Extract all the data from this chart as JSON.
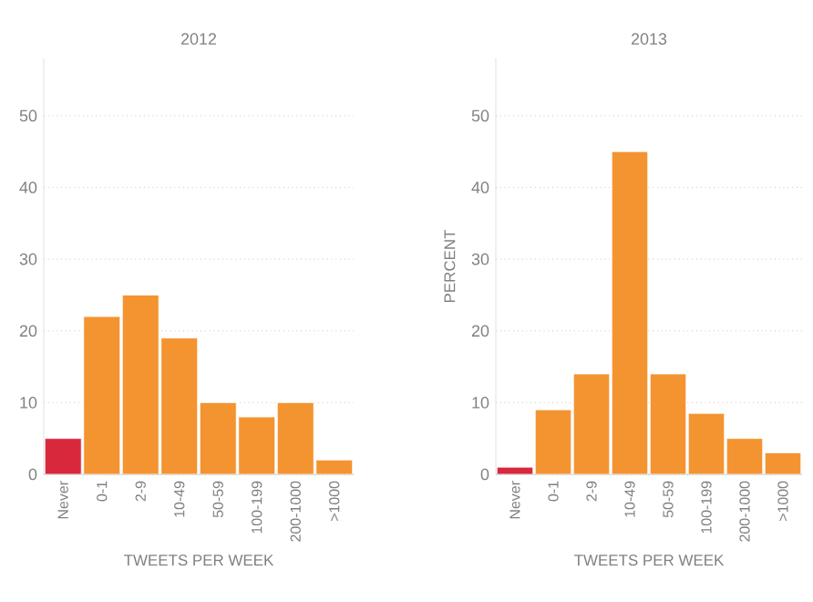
{
  "chart_data": [
    {
      "type": "bar",
      "title": "2012",
      "xlabel": "TWEETS PER WEEK",
      "categories": [
        "Never",
        "0-1",
        "2-9",
        "10-49",
        "50-59",
        "100-199",
        "200-1000",
        ">1000"
      ],
      "values": [
        5,
        22,
        25,
        19,
        10,
        8,
        10,
        2
      ],
      "colors": [
        "#d8283c",
        "#f39431",
        "#f39431",
        "#f39431",
        "#f39431",
        "#f39431",
        "#f39431",
        "#f39431"
      ],
      "ylim": [
        0,
        58
      ],
      "yticks": [
        0,
        10,
        20,
        30,
        40,
        50
      ],
      "grid": "y"
    },
    {
      "type": "bar",
      "title": "2013",
      "xlabel": "TWEETS PER WEEK",
      "ylabel": "PERCENT",
      "categories": [
        "Never",
        "0-1",
        "2-9",
        "10-49",
        "50-59",
        "100-199",
        "200-1000",
        ">1000"
      ],
      "values": [
        1,
        9,
        14,
        45,
        14,
        8.5,
        5,
        3
      ],
      "colors": [
        "#d8283c",
        "#f39431",
        "#f39431",
        "#f39431",
        "#f39431",
        "#f39431",
        "#f39431",
        "#f39431"
      ],
      "ylim": [
        0,
        58
      ],
      "yticks": [
        0,
        10,
        20,
        30,
        40,
        50
      ],
      "grid": "y"
    }
  ]
}
